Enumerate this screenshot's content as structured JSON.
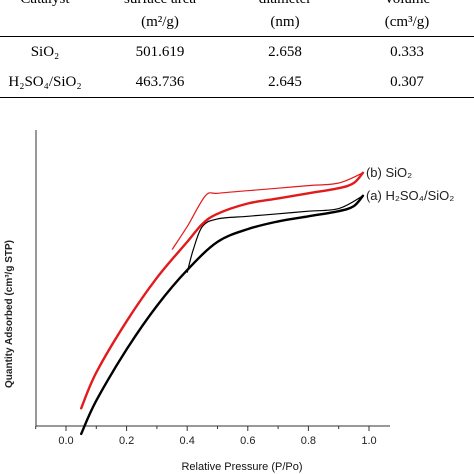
{
  "table": {
    "headers_top": [
      "Catalyst",
      "surface area",
      "diameter",
      "Volume"
    ],
    "headers_units": [
      "",
      "(m²/g)",
      "(nm)",
      "(cm³/g)"
    ],
    "rows": [
      [
        "SiO₂",
        "501.619",
        "2.658",
        "0.333"
      ],
      [
        "H₂SO₄/SiO₂",
        "463.736",
        "2.645",
        "0.307"
      ]
    ]
  },
  "chart_data": {
    "type": "line",
    "xlabel": "Relative Pressure (P/Po)",
    "ylabel": "Quantity Adsorbed (cm³/g STP)",
    "xlim": [
      -0.1,
      1.05
    ],
    "xticks": [
      "0.0",
      "0.2",
      "0.4",
      "0.6",
      "0.8",
      "1.0"
    ],
    "y_tick_labels": false,
    "grid": false,
    "series": [
      {
        "name": "(b) SiO₂",
        "color": "#e31a1c",
        "adsorption": [
          [
            0.05,
            0.03
          ],
          [
            0.1,
            0.17
          ],
          [
            0.2,
            0.37
          ],
          [
            0.3,
            0.54
          ],
          [
            0.4,
            0.68
          ],
          [
            0.45,
            0.75
          ],
          [
            0.5,
            0.79
          ],
          [
            0.6,
            0.83
          ],
          [
            0.7,
            0.85
          ],
          [
            0.8,
            0.87
          ],
          [
            0.9,
            0.89
          ],
          [
            0.95,
            0.91
          ],
          [
            0.98,
            0.95
          ]
        ],
        "desorption": [
          [
            0.98,
            0.95
          ],
          [
            0.9,
            0.91
          ],
          [
            0.8,
            0.9
          ],
          [
            0.7,
            0.89
          ],
          [
            0.6,
            0.88
          ],
          [
            0.5,
            0.87
          ],
          [
            0.46,
            0.86
          ],
          [
            0.4,
            0.74
          ],
          [
            0.35,
            0.65
          ]
        ]
      },
      {
        "name": "(a) H₂SO₄/SiO₂",
        "color": "#000000",
        "adsorption": [
          [
            0.05,
            -0.07
          ],
          [
            0.1,
            0.06
          ],
          [
            0.2,
            0.26
          ],
          [
            0.3,
            0.43
          ],
          [
            0.4,
            0.57
          ],
          [
            0.5,
            0.68
          ],
          [
            0.6,
            0.73
          ],
          [
            0.7,
            0.76
          ],
          [
            0.8,
            0.78
          ],
          [
            0.9,
            0.8
          ],
          [
            0.95,
            0.82
          ],
          [
            0.98,
            0.86
          ]
        ],
        "desorption": [
          [
            0.98,
            0.86
          ],
          [
            0.9,
            0.81
          ],
          [
            0.8,
            0.8
          ],
          [
            0.7,
            0.79
          ],
          [
            0.6,
            0.78
          ],
          [
            0.5,
            0.77
          ],
          [
            0.45,
            0.74
          ],
          [
            0.42,
            0.65
          ],
          [
            0.4,
            0.56
          ]
        ]
      }
    ]
  }
}
